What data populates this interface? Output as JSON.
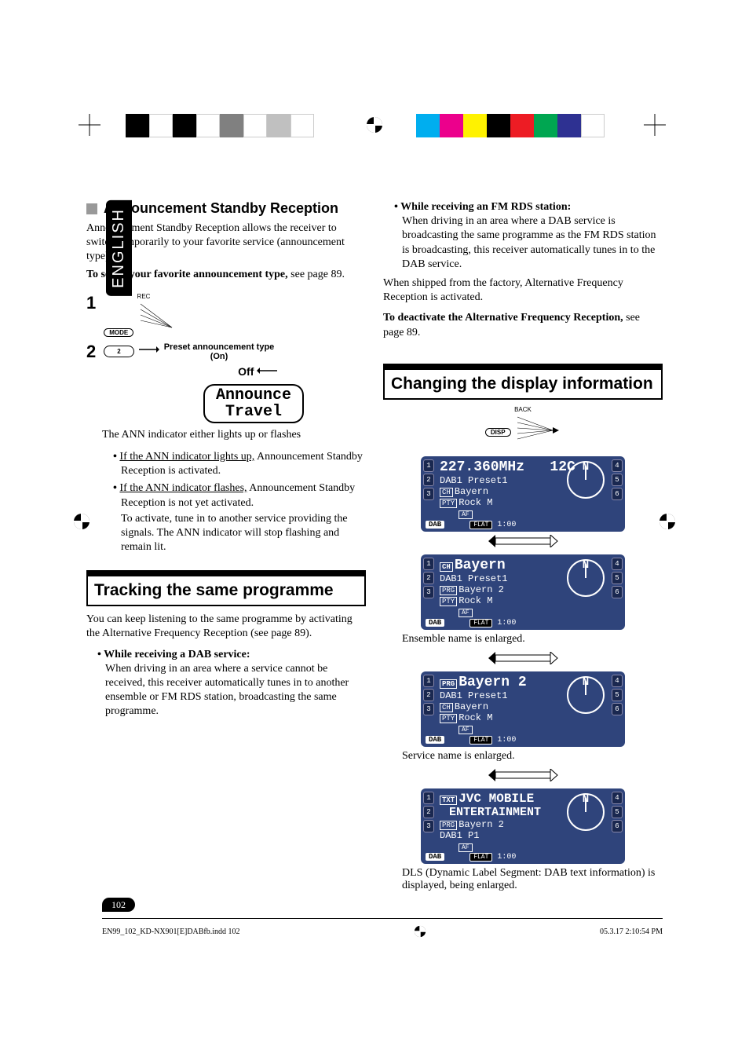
{
  "lang_tab": "ENGLISH",
  "reg_colors_left": [
    "#000000",
    "#ffffff",
    "#000000",
    "#ffffff",
    "#808080",
    "#ffffff",
    "#c0c0c0",
    "#ffffff"
  ],
  "reg_colors_right": [
    "#00aeef",
    "#ec008c",
    "#fff200",
    "#000000",
    "#ed1c24",
    "#00a651",
    "#2e3192",
    "#ffffff"
  ],
  "left": {
    "h1": "Announcement Standby Reception",
    "p1": "Announcement Standby Reception allows the receiver to switch temporarily to your favorite service (announcement type).",
    "p2_bold": "To select your favorite announcement type,",
    "p2_rest": " see page 89.",
    "step1": "1",
    "step1_btn_top": "REC",
    "step1_btn": "MODE",
    "step2": "2",
    "step2_btn": "2",
    "preset_label": "Preset announcement type",
    "preset_on": "(On)",
    "preset_off": "Off",
    "disp_line1": "Announce",
    "disp_line2": "Travel",
    "p3": "The ANN indicator either lights up or flashes",
    "bullet1_u": "If the ANN indicator lights up,",
    "bullet1_rest": " Announcement Standby Reception is activated.",
    "bullet2_u": "If the ANN indicator flashes,",
    "bullet2_rest": " Announcement Standby Reception is not yet activated.",
    "bullet2_p2": "To activate, tune in to another service providing the signals. The ANN indicator will stop flashing and remain lit.",
    "box_title": "Tracking the same programme",
    "track_p1": "You can keep listening to the same programme by activating the Alternative Frequency Reception (see page 89).",
    "track_b1_bold": "While receiving a DAB service:",
    "track_b1": "When driving in an area where a service cannot be received, this receiver automatically tunes in to another ensemble or FM RDS station, broadcasting the same programme."
  },
  "right": {
    "b1_bold": "While receiving an FM RDS station:",
    "b1": "When driving in an area where a DAB service is broadcasting the same programme as the FM RDS station is broadcasting, this receiver automatically tunes in to the DAB service.",
    "p1": "When shipped from the factory, Alternative Frequency Reception is activated.",
    "p2_bold": "To deactivate the Alternative Frequency Reception,",
    "p2_rest": " see page 89.",
    "box_title": "Changing the display information",
    "disp_btn_top": "BACK",
    "disp_btn": "DISP",
    "screen1": {
      "freq": "227.360MHz",
      "ch": "12C",
      "l1": "DAB1   Preset1",
      "l2a": "CH",
      "l2b": "Bayern",
      "l3a": "PTY",
      "l3b": "Rock M",
      "af": "AF",
      "dab": "DAB",
      "flat": "FLAT",
      "time": "1:00"
    },
    "screen2": {
      "big_pre": "CH",
      "big": "Bayern",
      "l1": "DAB1   Preset1",
      "l2a": "PRG",
      "l2b": "Bayern 2",
      "l3a": "PTY",
      "l3b": "Rock M",
      "af": "AF",
      "dab": "DAB",
      "flat": "FLAT",
      "time": "1:00"
    },
    "cap2": "Ensemble name is enlarged.",
    "screen3": {
      "big_pre": "PRG",
      "big": "Bayern 2",
      "l1": "DAB1   Preset1",
      "l2a": "CH",
      "l2b": "Bayern",
      "l3a": "PTY",
      "l3b": "Rock M",
      "af": "AF",
      "dab": "DAB",
      "flat": "FLAT",
      "time": "1:00"
    },
    "cap3": "Service name is enlarged.",
    "screen4": {
      "big_pre": "TXT",
      "big": "JVC MOBILE",
      "big2": "ENTERTAINMENT",
      "l2a": "PRG",
      "l2b": "Bayern 2",
      "l3": "DAB1  P1",
      "af": "AF",
      "dab": "DAB",
      "flat": "FLAT",
      "time": "1:00"
    },
    "cap4": "DLS (Dynamic Label Segment: DAB text information) is displayed, being enlarged."
  },
  "page_number": "102",
  "footer_left": "EN99_102_KD-NX901[E]DABfb.indd   102",
  "footer_right": "05.3.17   2:10:54 PM"
}
